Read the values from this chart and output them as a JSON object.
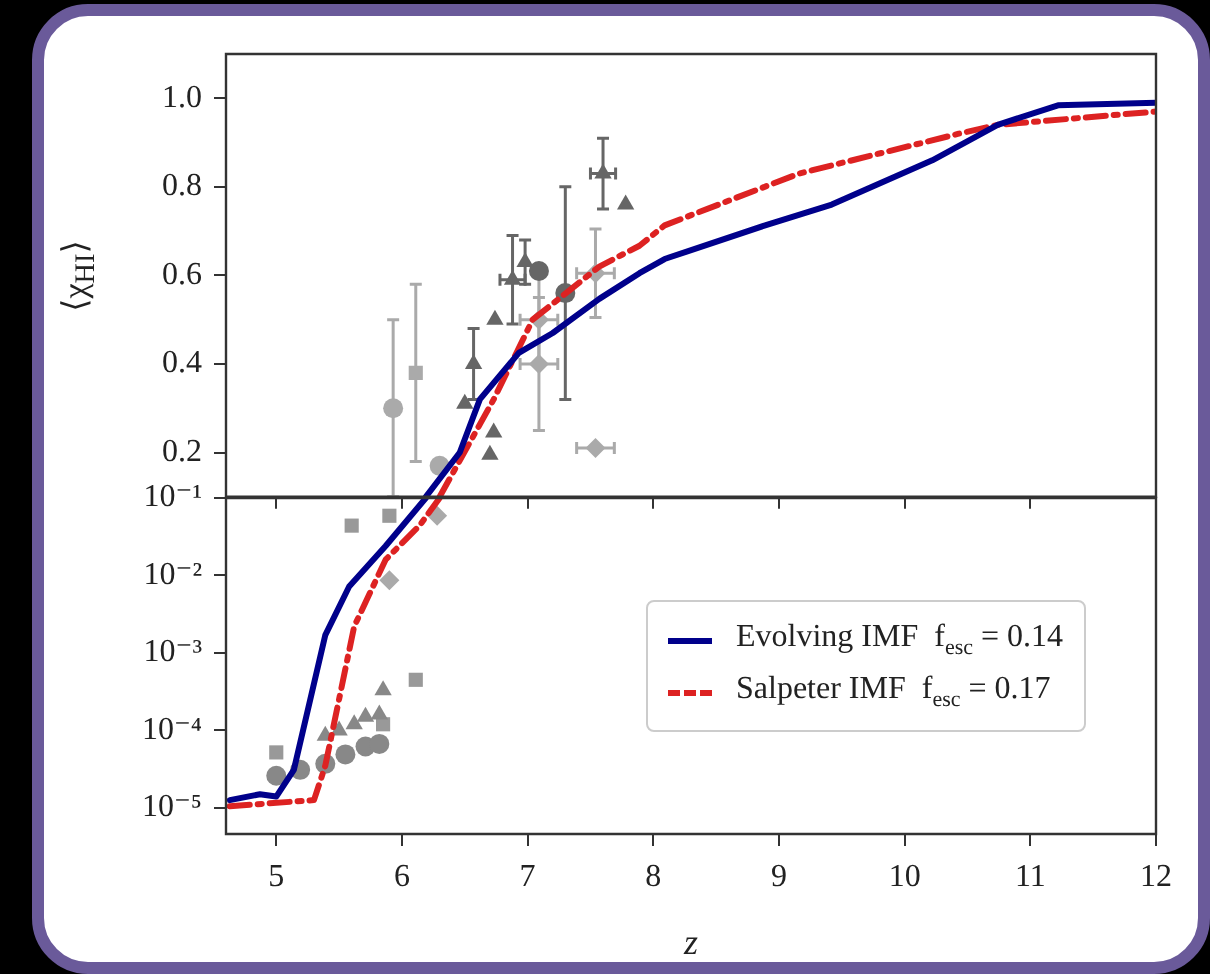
{
  "chart_data": [
    {
      "type": "line",
      "ylabel": "⟨χ$_{HI}$⟩",
      "xlim": [
        4.6,
        12
      ],
      "xticks": [
        5,
        6,
        7,
        8,
        9,
        10,
        11,
        12
      ],
      "ylim": [
        0.1,
        1.1
      ],
      "yticks": [
        0.2,
        0.4,
        0.6,
        0.8,
        {
          "value": 1,
          "label": "1.0"
        }
      ],
      "tick_labels": "y",
      "legend": false,
      "series": [
        {
          "type": "line",
          "color": "#00008b",
          "line_style": "solid",
          "x": [
            6.19,
            6.46,
            6.62,
            6.93,
            7.2,
            7.57,
            7.89,
            8.09,
            8.89,
            9.42,
            10.22,
            10.74,
            11.22,
            12
          ],
          "values": [
            0.1,
            0.2,
            0.32,
            0.425,
            0.47,
            0.547,
            0.605,
            0.637,
            0.713,
            0.76,
            0.86,
            0.94,
            0.984,
            0.99
          ]
        },
        {
          "type": "line",
          "color": "#dd2222",
          "line_style": "dashed",
          "x": [
            6.3,
            6.73,
            7.04,
            7.57,
            7.89,
            8.09,
            9.16,
            10.43,
            10.74,
            12
          ],
          "values": [
            0.1,
            0.32,
            0.5,
            0.62,
            0.667,
            0.713,
            0.83,
            0.92,
            0.94,
            0.97
          ]
        },
        {
          "type": "scatter",
          "color": "#666666",
          "marker": "triangle",
          "x": [
            6.57,
            6.5,
            6.7,
            6.73,
            6.74,
            6.88,
            6.98,
            7.6,
            7.78
          ],
          "values": [
            0.4,
            0.31,
            0.195,
            0.245,
            0.5,
            0.59,
            0.63,
            0.83,
            0.76
          ],
          "errors": [
            0.08,
            null,
            null,
            null,
            null,
            0.1,
            0.05,
            0.08,
            null
          ],
          "xerrors": [
            null,
            null,
            null,
            null,
            null,
            0.1,
            null,
            0.1,
            null
          ]
        },
        {
          "type": "scatter",
          "color": "#666666",
          "marker": "circle",
          "x": [
            7.09,
            7.3
          ],
          "values": [
            0.61,
            0.56
          ],
          "errors": [
            null,
            0.24
          ]
        },
        {
          "type": "scatter",
          "color": "#aaaaaa",
          "marker": "square",
          "x": [
            6.11
          ],
          "values": [
            0.38
          ],
          "errors": [
            0.2
          ]
        },
        {
          "type": "scatter",
          "color": "#aaaaaa",
          "marker": "circle",
          "x": [
            5.93,
            6.3
          ],
          "values": [
            0.3,
            0.17
          ],
          "errors": [
            0.2,
            null
          ]
        },
        {
          "type": "scatter",
          "color": "#aaaaaa",
          "marker": "diamond",
          "x": [
            7.09,
            7.09,
            7.54,
            7.54
          ],
          "values": [
            0.5,
            0.4,
            0.605,
            0.21
          ],
          "errors": [
            0.1,
            0.15,
            0.1,
            null
          ],
          "xerrors": [
            0.15,
            0.15,
            0.15,
            0.15
          ]
        }
      ]
    },
    {
      "type": "line",
      "xlabel": "z",
      "xlim": [
        4.6,
        12
      ],
      "xticks": [
        5,
        6,
        7,
        8,
        9,
        10,
        11,
        12
      ],
      "ylim": [
        4.6e-06,
        0.1
      ],
      "log": "y",
      "yticks": [
        {
          "value": 1e-05,
          "label": "10⁻⁵"
        },
        {
          "value": 0.0001,
          "label": "10⁻⁴"
        },
        {
          "value": 0.001,
          "label": "10⁻³"
        },
        {
          "value": 0.01,
          "label": "10⁻²"
        },
        {
          "value": 0.1,
          "label": "10⁻¹"
        }
      ],
      "legend": "right",
      "series": [
        {
          "type": "line",
          "name": "Evolving IMF  f$_{esc}$ = 0.14",
          "color": "#00008b",
          "line_style": "solid",
          "x": [
            4.63,
            4.87,
            5.0,
            5.14,
            5.39,
            5.58,
            5.87,
            6.19
          ],
          "values": [
            1.26e-05,
            1.5e-05,
            1.4e-05,
            3.1e-05,
            0.0017,
            0.0072,
            0.024,
            0.1
          ]
        },
        {
          "type": "line",
          "name": "Salpeter IMF  f$_{esc}$ = 0.17",
          "color": "#dd2222",
          "line_style": "dashed",
          "x": [
            4.63,
            5.3,
            5.39,
            5.62,
            5.87,
            6.14,
            6.3
          ],
          "values": [
            1.05e-05,
            1.26e-05,
            3.5e-05,
            0.0022,
            0.016,
            0.044,
            0.1
          ]
        },
        {
          "type": "scatter",
          "color": "#888888",
          "marker": "circle",
          "x": [
            5.0,
            5.19,
            5.39,
            5.55,
            5.71,
            5.82
          ],
          "values": [
            2.6e-05,
            3.1e-05,
            3.7e-05,
            4.9e-05,
            6.2e-05,
            6.7e-05
          ]
        },
        {
          "type": "scatter",
          "color": "#888888",
          "marker": "triangle",
          "x": [
            5.39,
            5.5,
            5.62,
            5.71,
            5.82,
            5.85
          ],
          "values": [
            8.5e-05,
            0.0001,
            0.00012,
            0.00015,
            0.00016,
            0.00033
          ]
        },
        {
          "type": "scatter",
          "color": "#999999",
          "marker": "square",
          "x": [
            5.0,
            5.6,
            5.9,
            6.11,
            5.85
          ],
          "values": [
            5.2e-05,
            0.044,
            0.059,
            0.00045,
            0.00012
          ]
        },
        {
          "type": "scatter",
          "color": "#aaaaaa",
          "marker": "diamond",
          "x": [
            5.9,
            6.28
          ],
          "values": [
            0.0087,
            0.059
          ]
        }
      ]
    }
  ]
}
